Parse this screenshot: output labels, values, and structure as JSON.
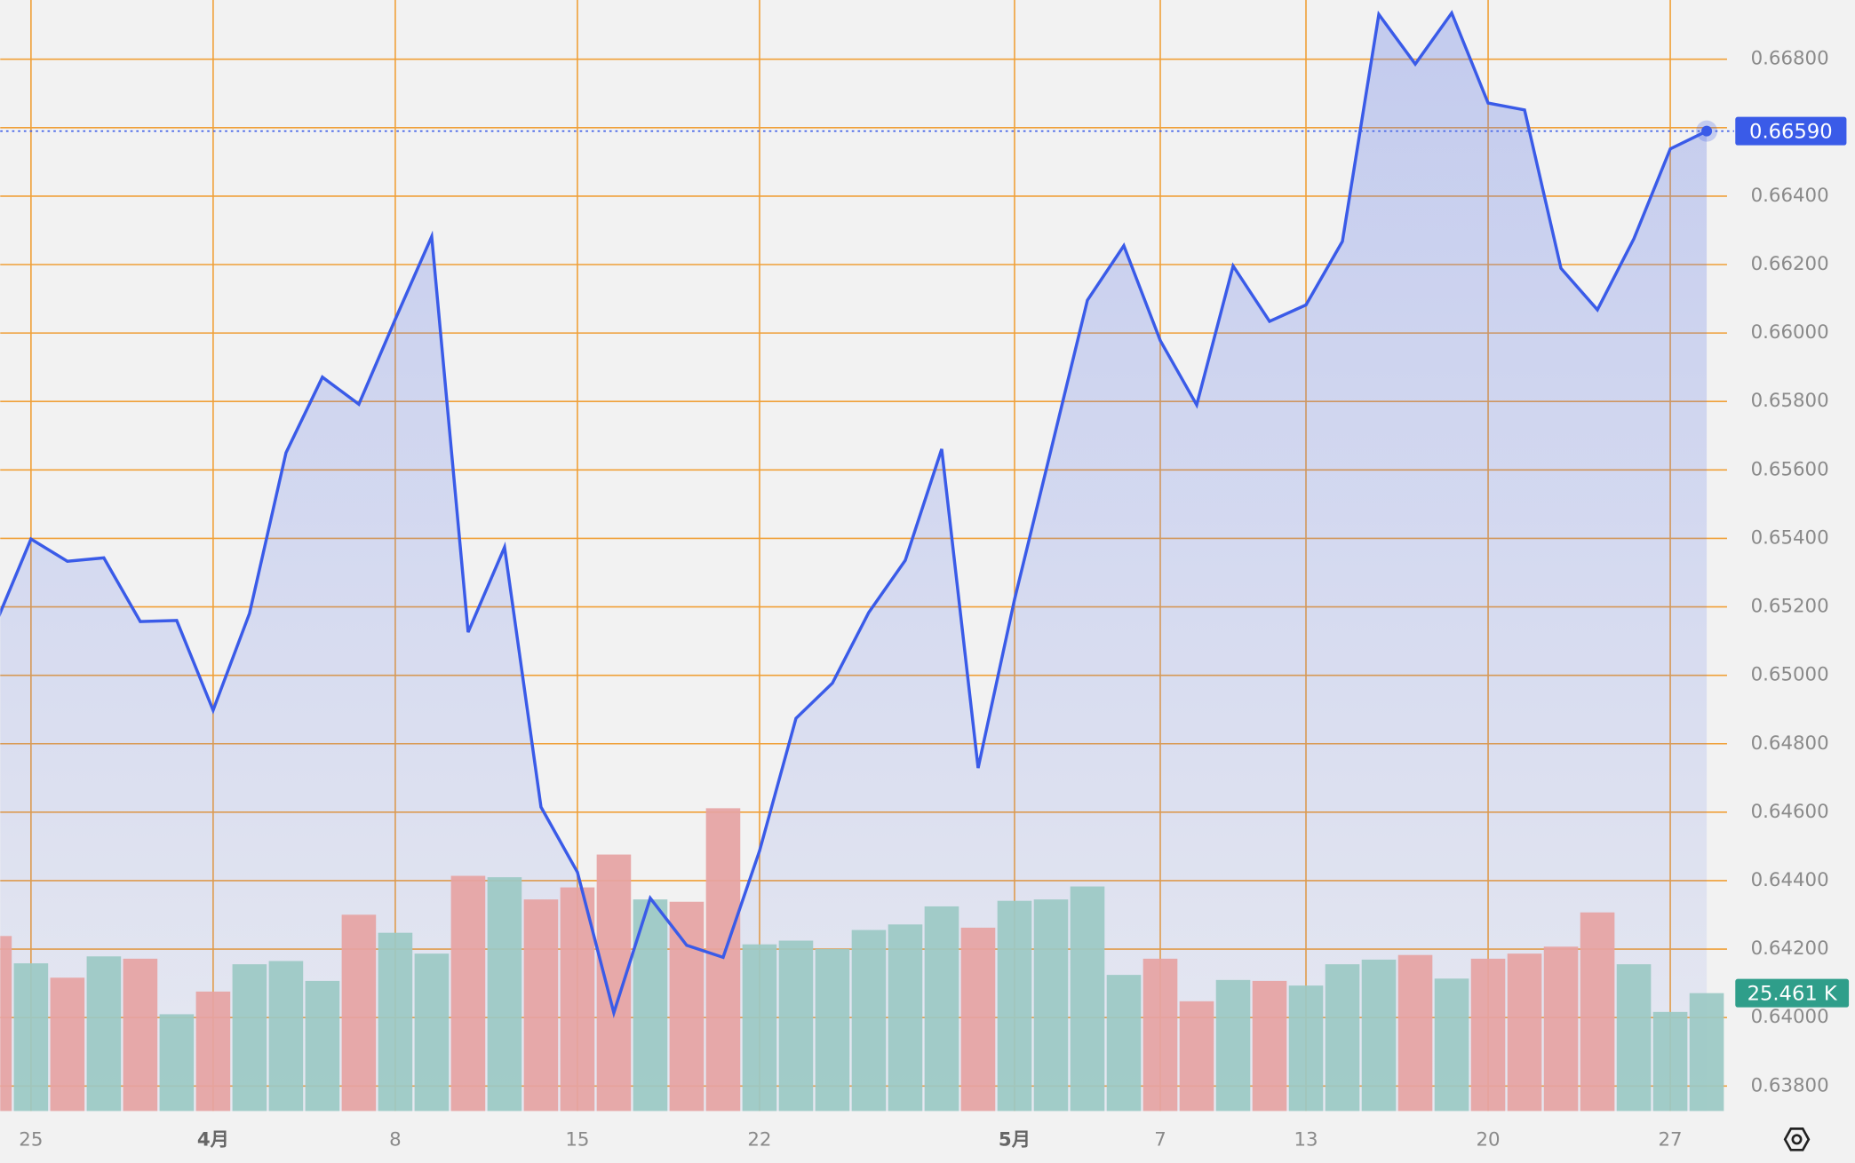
{
  "chart_data": {
    "type": "line",
    "categories": [
      null,
      "25",
      null,
      null,
      null,
      null,
      "4月",
      null,
      null,
      null,
      null,
      "8",
      null,
      null,
      null,
      null,
      "15",
      null,
      null,
      null,
      null,
      "22",
      null,
      null,
      null,
      null,
      null,
      null,
      "5月",
      null,
      null,
      null,
      "7",
      null,
      null,
      null,
      "13",
      null,
      null,
      null,
      null,
      "20",
      null,
      null,
      null,
      null,
      "27",
      null
    ],
    "values": [
      0.65143,
      0.65398,
      0.65333,
      0.65343,
      0.65157,
      0.6516,
      0.64898,
      0.65181,
      0.6565,
      0.65871,
      0.65792,
      0.6604,
      0.66282,
      0.65126,
      0.65374,
      0.64615,
      0.64425,
      0.64014,
      0.64349,
      0.64211,
      0.64176,
      0.64487,
      0.64874,
      0.64977,
      0.65184,
      0.65336,
      0.65661,
      0.64729,
      0.65222,
      0.65658,
      0.66096,
      0.66255,
      0.65978,
      0.6579,
      0.66196,
      0.66034,
      0.66082,
      0.66268,
      0.66931,
      0.66786,
      0.66935,
      0.66672,
      0.66652,
      0.66189,
      0.66068,
      0.66275,
      0.66538,
      0.6659
    ],
    "color": "#3a5be8",
    "ylim": [
      0.63727,
      0.66973
    ],
    "yticks": [
      {
        "value": 0.638,
        "label": "0.63800"
      },
      {
        "value": 0.64,
        "label": "0.64000"
      },
      {
        "value": 0.642,
        "label": "0.64200"
      },
      {
        "value": 0.644,
        "label": "0.64400"
      },
      {
        "value": 0.646,
        "label": "0.64600"
      },
      {
        "value": 0.648,
        "label": "0.64800"
      },
      {
        "value": 0.65,
        "label": "0.65000"
      },
      {
        "value": 0.652,
        "label": "0.65200"
      },
      {
        "value": 0.654,
        "label": "0.65400"
      },
      {
        "value": 0.656,
        "label": "0.65600"
      },
      {
        "value": 0.658,
        "label": "0.65800"
      },
      {
        "value": 0.66,
        "label": "0.66000"
      },
      {
        "value": 0.662,
        "label": "0.66200"
      },
      {
        "value": 0.664,
        "label": "0.66400"
      },
      {
        "value": 0.666,
        "label": "0.66600"
      },
      {
        "value": 0.668,
        "label": "0.66800"
      }
    ],
    "grid": true,
    "grid_color": "#f0a038",
    "last_value": {
      "value": 0.6659,
      "label": "0.66590"
    },
    "volume": {
      "type": "bar",
      "values": [
        37.8,
        31.9,
        28.8,
        33.4,
        32.9,
        20.9,
        25.8,
        31.7,
        32.4,
        28.1,
        42.4,
        38.5,
        34.0,
        50.8,
        50.5,
        45.7,
        48.3,
        55.4,
        45.7,
        45.2,
        65.4,
        36.0,
        36.8,
        35.0,
        39.1,
        40.3,
        44.2,
        39.6,
        45.4,
        45.7,
        48.5,
        29.4,
        32.9,
        23.7,
        28.3,
        28.1,
        27.1,
        31.7,
        32.7,
        33.7,
        28.6,
        32.9,
        34.0,
        35.5,
        42.9,
        31.7,
        21.4,
        25.461
      ],
      "colors": [
        "#e6a3a3",
        "#9bc9c4",
        "#e6a3a3",
        "#9bc9c4",
        "#e6a3a3",
        "#9bc9c4",
        "#e6a3a3",
        "#9bc9c4",
        "#9bc9c4",
        "#9bc9c4",
        "#e6a3a3",
        "#9bc9c4",
        "#9bc9c4",
        "#e6a3a3",
        "#9bc9c4",
        "#e6a3a3",
        "#e6a3a3",
        "#e6a3a3",
        "#9bc9c4",
        "#e6a3a3",
        "#e6a3a3",
        "#9bc9c4",
        "#9bc9c4",
        "#9bc9c4",
        "#9bc9c4",
        "#9bc9c4",
        "#9bc9c4",
        "#e6a3a3",
        "#9bc9c4",
        "#9bc9c4",
        "#9bc9c4",
        "#9bc9c4",
        "#e6a3a3",
        "#e6a3a3",
        "#9bc9c4",
        "#e6a3a3",
        "#9bc9c4",
        "#9bc9c4",
        "#9bc9c4",
        "#e6a3a3",
        "#9bc9c4",
        "#e6a3a3",
        "#e6a3a3",
        "#e6a3a3",
        "#e6a3a3",
        "#9bc9c4",
        "#9bc9c4",
        "#9bc9c4"
      ],
      "y2lim": [
        0,
        240
      ],
      "last_value": {
        "value": 25.461,
        "label": "25.461 K"
      },
      "label_color": "#2f9e8a"
    }
  }
}
